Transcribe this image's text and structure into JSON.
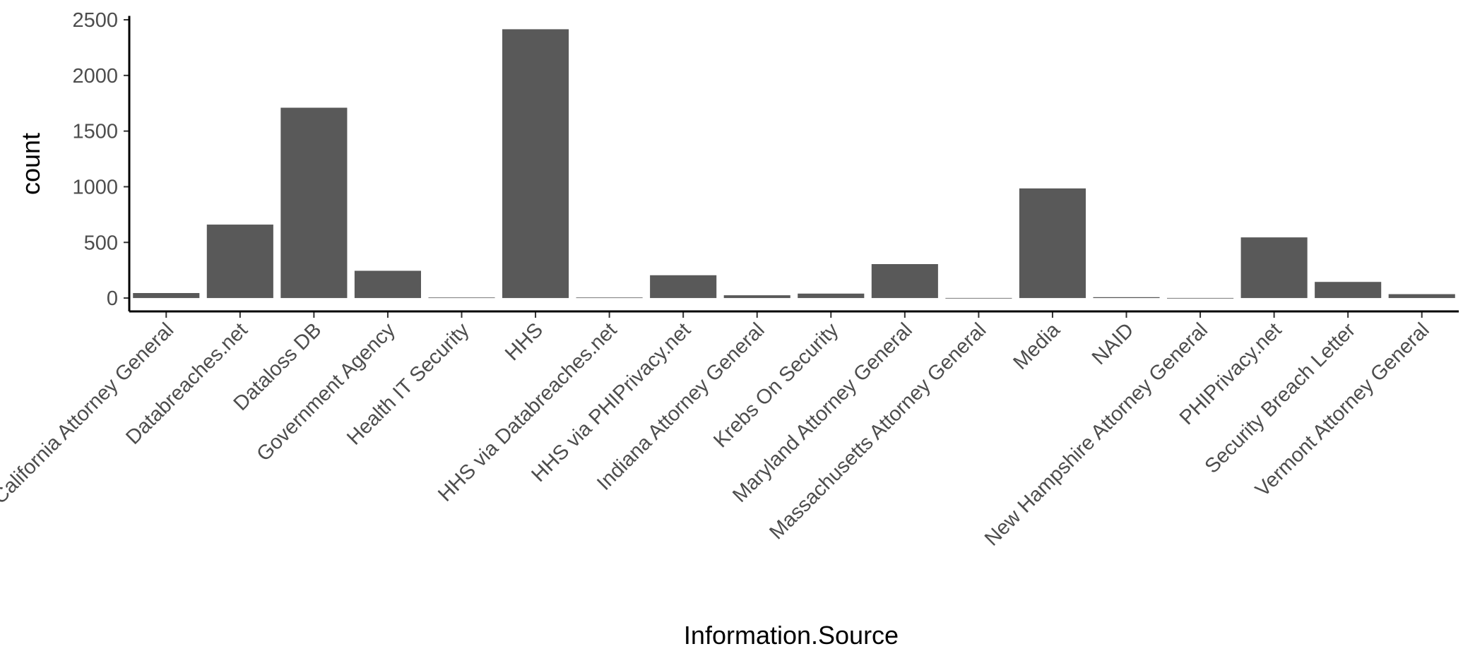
{
  "chart_data": {
    "type": "bar",
    "x_label": "Information.Source",
    "y_label": "count",
    "categories": [
      "California Attorney General",
      "Databreaches.net",
      "Dataloss DB",
      "Government Agency",
      "Health IT Security",
      "HHS",
      "HHS via Databreaches.net",
      "HHS via PHIPrivacy.net",
      "Indiana Attorney General",
      "Krebs On Security",
      "Maryland Attorney General",
      "Massachusetts Attorney General",
      "Media",
      "NAID",
      "New Hampshire Attorney General",
      "PHIPrivacy.net",
      "Security Breach Letter",
      "Vermont Attorney General"
    ],
    "values": [
      45,
      660,
      1710,
      245,
      5,
      2415,
      5,
      205,
      25,
      40,
      305,
      1,
      985,
      8,
      1,
      545,
      145,
      35
    ],
    "color": "#595959",
    "ylim": [
      -120,
      2535
    ],
    "yticks": [
      0,
      500,
      1000,
      1500,
      2000,
      2500
    ],
    "grid": false
  }
}
